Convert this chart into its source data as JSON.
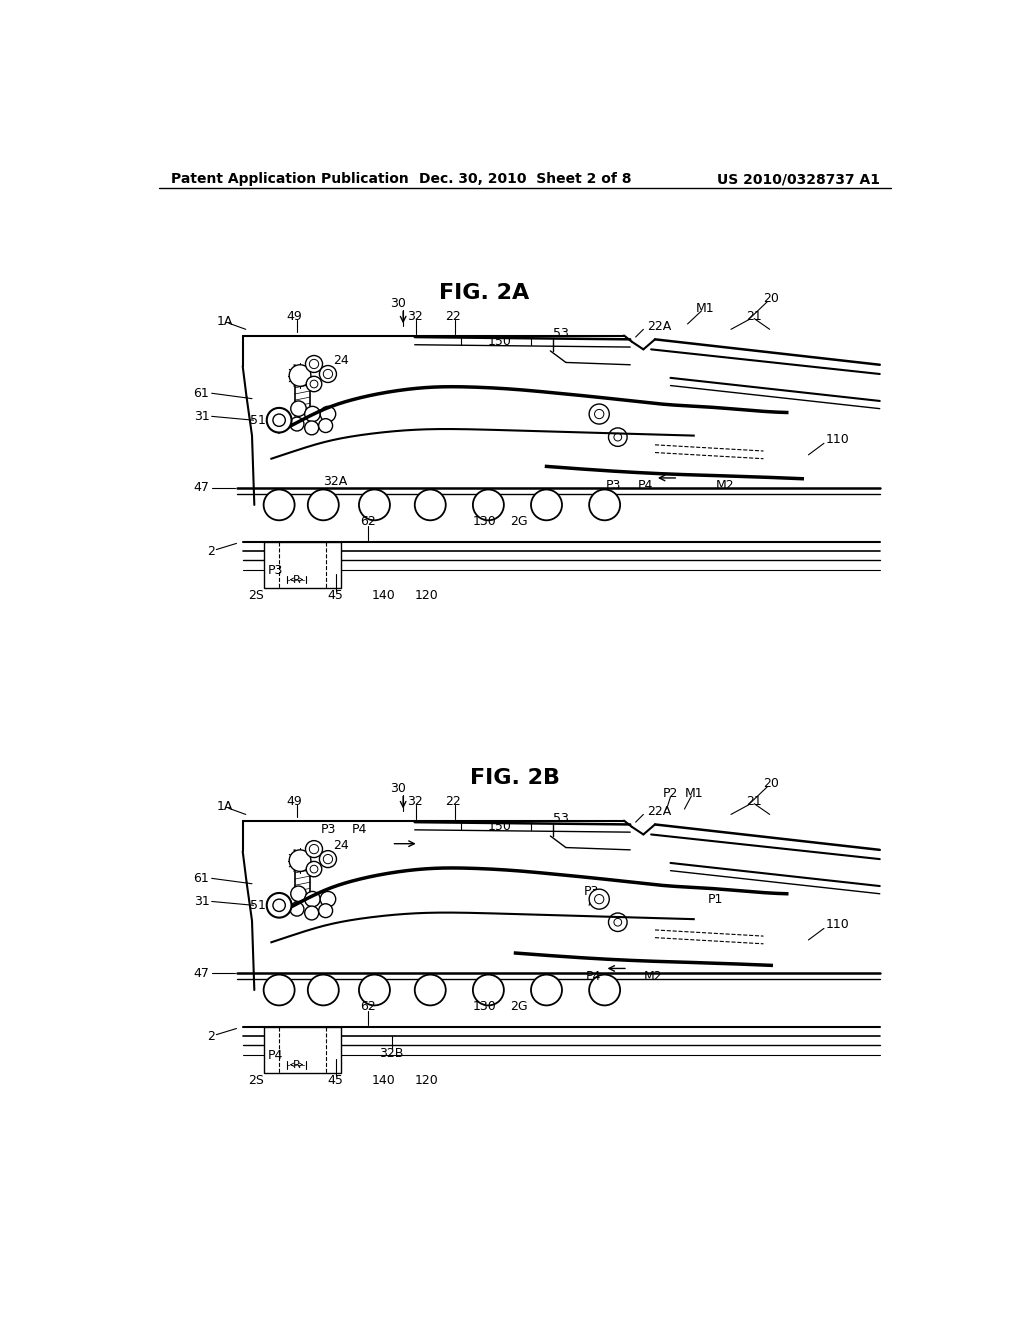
{
  "background_color": "#ffffff",
  "header_left": "Patent Application Publication",
  "header_center": "Dec. 30, 2010  Sheet 2 of 8",
  "header_right": "US 2010/0328737 A1",
  "fig2a_title": "FIG. 2A",
  "fig2b_title": "FIG. 2B"
}
